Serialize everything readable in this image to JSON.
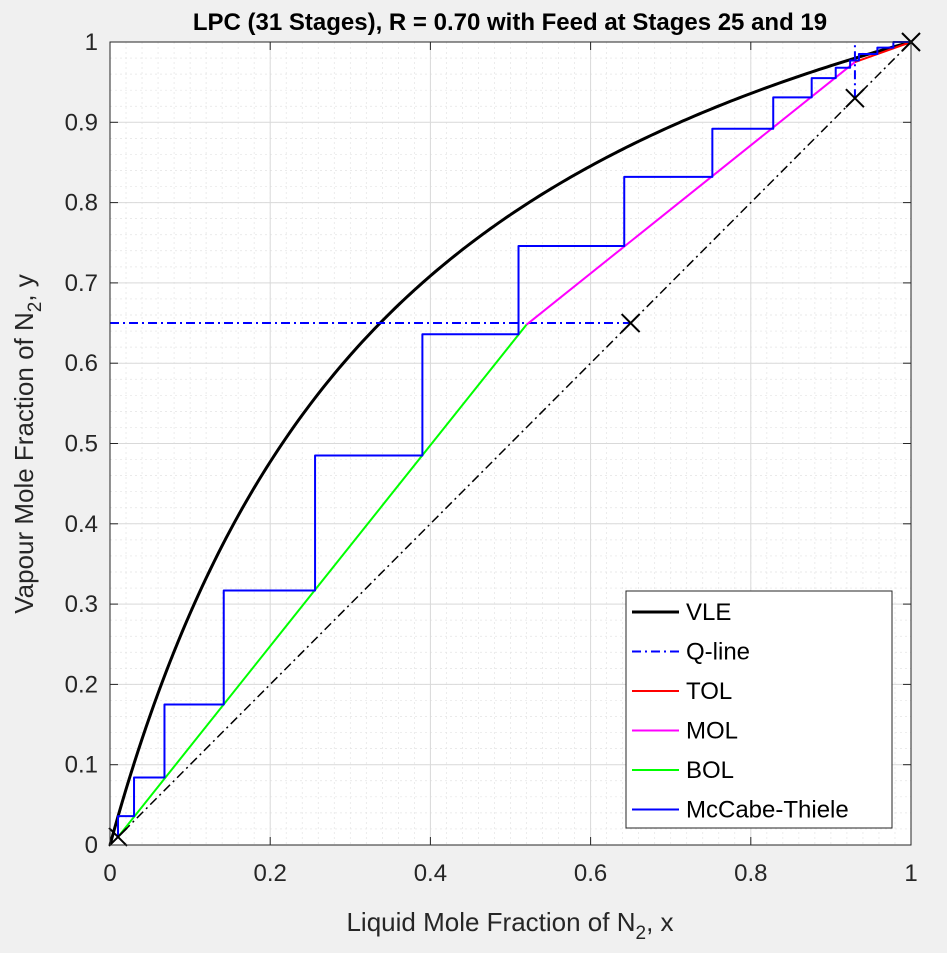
{
  "chart_data": {
    "type": "line",
    "title": "LPC (31 Stages), R = 0.70 with Feed at Stages 25 and 19",
    "xlabel": {
      "prefix": "Liquid Mole Fraction of N",
      "sub": "2",
      "suffix": ", x"
    },
    "ylabel": {
      "prefix": "Vapour Mole Fraction of N",
      "sub": "2",
      "suffix": ", y"
    },
    "xlim": [
      0,
      1
    ],
    "ylim": [
      0,
      1
    ],
    "xticks": [
      0,
      0.2,
      0.4,
      0.6,
      0.8,
      1
    ],
    "xtick_labels": [
      "0",
      "0.2",
      "0.4",
      "0.6",
      "0.8",
      "1"
    ],
    "yticks": [
      0,
      0.1,
      0.2,
      0.3,
      0.4,
      0.5,
      0.6,
      0.7,
      0.8,
      0.9,
      1
    ],
    "ytick_labels": [
      "0",
      "0.1",
      "0.2",
      "0.3",
      "0.4",
      "0.5",
      "0.6",
      "0.7",
      "0.8",
      "0.9",
      "1"
    ],
    "grid": true,
    "minor_grid": true,
    "legend_position": "bottom-right",
    "vle_alpha": 3.65,
    "series": [
      {
        "name": "VLE",
        "color": "#000000",
        "style": "solid",
        "width": 3,
        "x": [
          0,
          0.02,
          0.05,
          0.1,
          0.15,
          0.2,
          0.25,
          0.3,
          0.35,
          0.4,
          0.45,
          0.5,
          0.55,
          0.6,
          0.65,
          0.7,
          0.75,
          0.8,
          0.85,
          0.9,
          0.95,
          1.0
        ],
        "y": [
          0,
          0.069,
          0.161,
          0.289,
          0.392,
          0.477,
          0.549,
          0.61,
          0.663,
          0.709,
          0.749,
          0.785,
          0.817,
          0.846,
          0.871,
          0.895,
          0.916,
          0.936,
          0.954,
          0.97,
          0.986,
          1.0
        ]
      },
      {
        "name": "Q-line",
        "color": "#0000ff",
        "style": "dashdot",
        "width": 2,
        "segments": [
          {
            "x": [
              0.0,
              0.65
            ],
            "y": [
              0.65,
              0.65
            ]
          },
          {
            "x": [
              0.93,
              0.93
            ],
            "y": [
              0.93,
              1.0
            ]
          }
        ]
      },
      {
        "name": "TOL",
        "color": "#ff0000",
        "style": "solid",
        "width": 2,
        "x": [
          0.93,
          1.0
        ],
        "y": [
          0.975,
          1.0
        ]
      },
      {
        "name": "MOL",
        "color": "#ff00ff",
        "style": "solid",
        "width": 2,
        "x": [
          0.52,
          0.93
        ],
        "y": [
          0.648,
          0.975
        ]
      },
      {
        "name": "BOL",
        "color": "#00ff00",
        "style": "solid",
        "width": 2,
        "x": [
          0.01,
          0.52
        ],
        "y": [
          0.01,
          0.648
        ]
      },
      {
        "name": "McCabe-Thiele",
        "color": "#0000ff",
        "style": "solid",
        "width": 2,
        "x": [
          0.01,
          0.01,
          0.03,
          0.03,
          0.068,
          0.068,
          0.142,
          0.142,
          0.256,
          0.256,
          0.39,
          0.39,
          0.51,
          0.51,
          0.642,
          0.642,
          0.752,
          0.752,
          0.828,
          0.828,
          0.876,
          0.876,
          0.906,
          0.906,
          0.924,
          0.924,
          0.935,
          0.935,
          0.958,
          0.958,
          0.978,
          0.978,
          1.0
        ],
        "y": [
          0.01,
          0.036,
          0.036,
          0.084,
          0.084,
          0.175,
          0.175,
          0.317,
          0.317,
          0.485,
          0.485,
          0.636,
          0.636,
          0.746,
          0.746,
          0.832,
          0.832,
          0.892,
          0.892,
          0.931,
          0.931,
          0.955,
          0.955,
          0.968,
          0.968,
          0.977,
          0.977,
          0.985,
          0.985,
          0.993,
          0.993,
          1.0,
          1.0
        ]
      },
      {
        "name": "diagonal",
        "color": "#000000",
        "style": "dashdot",
        "width": 1.5,
        "in_legend": false,
        "x": [
          0,
          1
        ],
        "y": [
          0,
          1
        ]
      }
    ],
    "markers": [
      {
        "x": 0.01,
        "y": 0.01
      },
      {
        "x": 0.65,
        "y": 0.65
      },
      {
        "x": 0.93,
        "y": 0.93
      },
      {
        "x": 1.0,
        "y": 1.0
      }
    ],
    "legend": [
      "VLE",
      "Q-line",
      "TOL",
      "MOL",
      "BOL",
      "McCabe-Thiele"
    ]
  }
}
